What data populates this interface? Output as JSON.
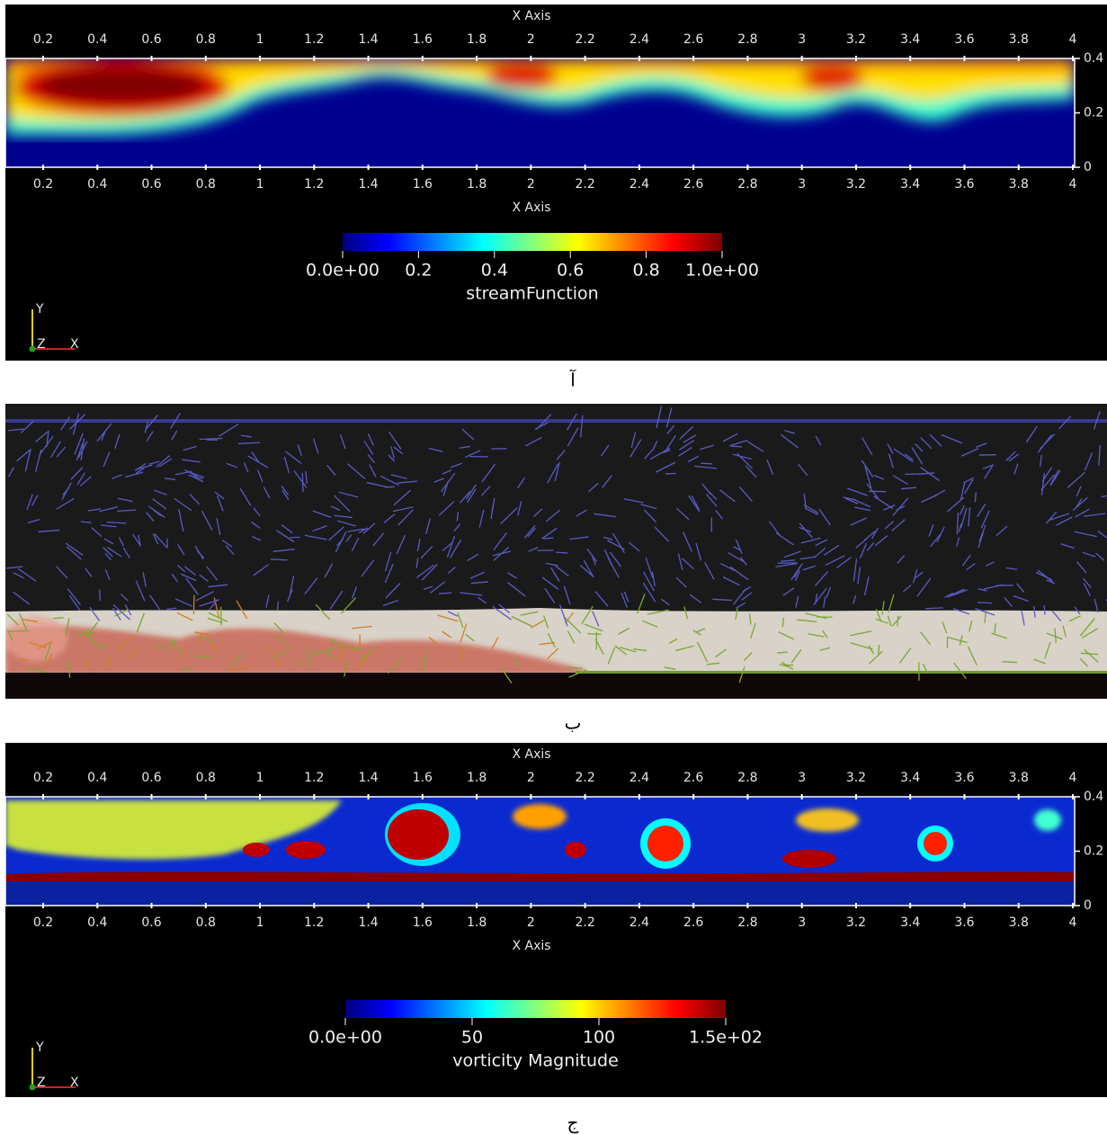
{
  "panels": [
    {
      "axis_title": "X Axis",
      "xticks": [
        "0.2",
        "0.4",
        "0.6",
        "0.8",
        "1",
        "1.2",
        "1.4",
        "1.6",
        "1.8",
        "2",
        "2.2",
        "2.4",
        "2.6",
        "2.8",
        "3",
        "3.2",
        "3.4",
        "3.6",
        "3.8",
        "4"
      ],
      "yticks": [
        "0.4",
        "0.2",
        "0"
      ],
      "colorbar": {
        "labels": [
          "0.0e+00",
          "0.2",
          "0.4",
          "0.6",
          "0.8",
          "1.0e+00"
        ],
        "title": "streamFunction"
      },
      "triad": [
        "Y",
        "Z",
        "X"
      ],
      "caption": "آ"
    },
    {
      "caption": "ب"
    },
    {
      "axis_title": "X Axis",
      "xticks": [
        "0.2",
        "0.4",
        "0.6",
        "0.8",
        "1",
        "1.2",
        "1.4",
        "1.6",
        "1.8",
        "2",
        "2.2",
        "2.4",
        "2.6",
        "2.8",
        "3",
        "3.2",
        "3.4",
        "3.6",
        "3.8",
        "4"
      ],
      "yticks": [
        "0.4",
        "0.2",
        "0"
      ],
      "colorbar": {
        "labels": [
          "0.0e+00",
          "50",
          "100",
          "1.5e+02"
        ],
        "title": "vorticity Magnitude"
      },
      "triad": [
        "Y",
        "Z",
        "X"
      ],
      "caption": "ج"
    }
  ]
}
